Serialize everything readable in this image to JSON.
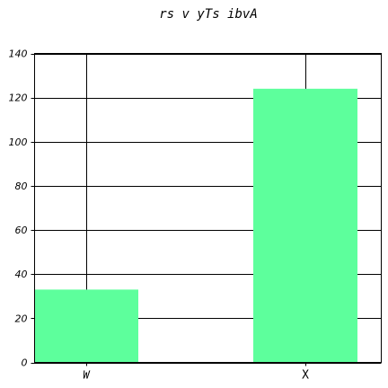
{
  "chart_data": {
    "type": "bar",
    "title": "rs v yTs ibvA",
    "categories": [
      "W",
      "X"
    ],
    "values": [
      33,
      124
    ],
    "ylim": [
      0,
      140
    ],
    "yticks": [
      0,
      20,
      40,
      60,
      80,
      100,
      120,
      140
    ],
    "bar_color": "#5dff9c",
    "grid": true
  }
}
